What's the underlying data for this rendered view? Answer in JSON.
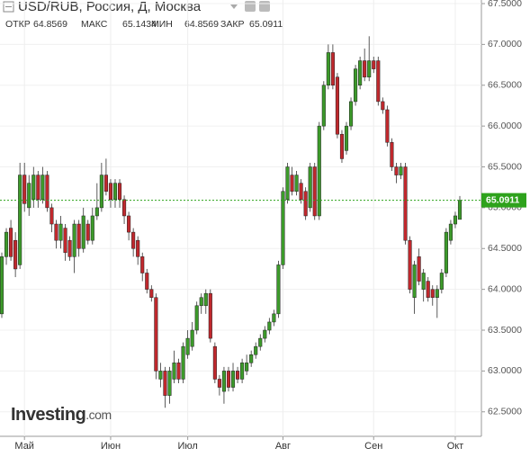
{
  "chart_data": {
    "type": "candlestick",
    "title": "USD/RUB, Россия, Д, Москва",
    "stat_labels": [
      "ОТКР",
      "МАКС",
      "МИН",
      "ЗАКР"
    ],
    "watermark": "Investing",
    "watermark_suffix": ".com",
    "up_color": "#3c9a2a",
    "down_color": "#c0282d",
    "last_color": "#2ea21c",
    "ylim": [
      62.2,
      67.5
    ],
    "yticks": [
      {
        "value": 62.5,
        "label": "62.5000"
      },
      {
        "value": 63,
        "label": "63.0000"
      },
      {
        "value": 63.5,
        "label": "63.5000"
      },
      {
        "value": 64,
        "label": "64.0000"
      },
      {
        "value": 64.5,
        "label": "64.5000"
      },
      {
        "value": 65,
        "label": "65.0000"
      },
      {
        "value": 65.5,
        "label": "65.5000"
      },
      {
        "value": 66,
        "label": "66.0000"
      },
      {
        "value": 66.5,
        "label": "66.5000"
      },
      {
        "value": 67,
        "label": "67.0000"
      },
      {
        "value": 67.5,
        "label": "67.5000"
      }
    ],
    "xticks": [
      {
        "value": 5,
        "label": "Май"
      },
      {
        "value": 24,
        "label": "Июн"
      },
      {
        "value": 41,
        "label": "Июл"
      },
      {
        "value": 62,
        "label": "Авг"
      },
      {
        "value": 82,
        "label": "Сен"
      },
      {
        "value": 100,
        "label": "Окт"
      }
    ],
    "ohlc": [
      [
        63.7,
        64.45,
        63.65,
        64.4
      ],
      [
        64.4,
        64.75,
        64.3,
        64.7
      ],
      [
        64.75,
        64.85,
        64.35,
        64.4
      ],
      [
        64.6,
        64.7,
        64.15,
        64.25
      ],
      [
        64.3,
        65.55,
        64.25,
        65.4
      ],
      [
        65.4,
        65.55,
        64.95,
        65.05
      ],
      [
        65.0,
        65.4,
        64.9,
        65.3
      ],
      [
        65.1,
        65.5,
        65.0,
        65.4
      ],
      [
        65.4,
        65.45,
        65.0,
        65.1
      ],
      [
        65.1,
        65.5,
        65.05,
        65.4
      ],
      [
        65.4,
        65.45,
        64.95,
        65.0
      ],
      [
        65.0,
        65.05,
        64.7,
        64.8
      ],
      [
        64.8,
        64.85,
        64.5,
        64.6
      ],
      [
        64.6,
        64.9,
        64.5,
        64.8
      ],
      [
        64.75,
        64.8,
        64.35,
        64.45
      ],
      [
        64.6,
        64.65,
        64.35,
        64.4
      ],
      [
        64.4,
        64.85,
        64.2,
        64.8
      ],
      [
        64.8,
        64.85,
        64.4,
        64.5
      ],
      [
        64.5,
        65.0,
        64.45,
        64.9
      ],
      [
        64.8,
        64.85,
        64.55,
        64.6
      ],
      [
        64.6,
        65.0,
        64.55,
        64.9
      ],
      [
        64.9,
        65.3,
        64.85,
        65.0
      ],
      [
        65.0,
        65.55,
        64.95,
        65.4
      ],
      [
        65.4,
        65.6,
        65.15,
        65.2
      ],
      [
        65.3,
        65.35,
        65.0,
        65.1
      ],
      [
        65.1,
        65.35,
        65.0,
        65.3
      ],
      [
        65.3,
        65.35,
        65.0,
        65.1
      ],
      [
        65.1,
        65.15,
        64.8,
        64.9
      ],
      [
        64.9,
        64.95,
        64.6,
        64.7
      ],
      [
        64.7,
        64.75,
        64.4,
        64.5
      ],
      [
        64.6,
        64.65,
        64.3,
        64.4
      ],
      [
        64.4,
        64.45,
        64.1,
        64.2
      ],
      [
        64.2,
        64.25,
        63.95,
        64.0
      ],
      [
        64.0,
        64.05,
        63.85,
        63.9
      ],
      [
        63.9,
        63.95,
        62.9,
        63.0
      ],
      [
        62.9,
        63.1,
        62.8,
        63.0
      ],
      [
        63.0,
        63.05,
        62.55,
        62.7
      ],
      [
        62.7,
        63.05,
        62.6,
        63.0
      ],
      [
        62.9,
        63.25,
        62.85,
        63.1
      ],
      [
        63.1,
        63.15,
        62.85,
        62.9
      ],
      [
        62.9,
        63.35,
        62.85,
        63.3
      ],
      [
        63.2,
        63.5,
        63.15,
        63.4
      ],
      [
        63.3,
        63.6,
        63.25,
        63.5
      ],
      [
        63.5,
        63.85,
        63.45,
        63.8
      ],
      [
        63.8,
        63.95,
        63.7,
        63.9
      ],
      [
        63.8,
        64.0,
        63.7,
        63.95
      ],
      [
        63.95,
        64.0,
        63.35,
        63.4
      ],
      [
        63.3,
        63.35,
        62.85,
        62.9
      ],
      [
        62.9,
        62.95,
        62.7,
        62.8
      ],
      [
        62.75,
        63.05,
        62.6,
        63.0
      ],
      [
        63.0,
        63.05,
        62.75,
        62.8
      ],
      [
        62.8,
        63.1,
        62.75,
        63.0
      ],
      [
        63.0,
        63.05,
        62.85,
        62.9
      ],
      [
        62.9,
        63.15,
        62.85,
        63.1
      ],
      [
        63.0,
        63.2,
        62.95,
        63.1
      ],
      [
        63.1,
        63.25,
        63.05,
        63.2
      ],
      [
        63.2,
        63.35,
        63.15,
        63.3
      ],
      [
        63.3,
        63.45,
        63.25,
        63.4
      ],
      [
        63.4,
        63.55,
        63.35,
        63.5
      ],
      [
        63.5,
        63.65,
        63.45,
        63.6
      ],
      [
        63.6,
        63.75,
        63.55,
        63.7
      ],
      [
        63.7,
        64.35,
        63.65,
        64.3
      ],
      [
        64.3,
        65.25,
        64.25,
        65.2
      ],
      [
        65.1,
        65.55,
        65.05,
        65.5
      ],
      [
        65.4,
        65.5,
        65.15,
        65.2
      ],
      [
        65.2,
        65.45,
        65.15,
        65.4
      ],
      [
        65.3,
        65.35,
        65.05,
        65.1
      ],
      [
        65.2,
        65.25,
        64.85,
        64.9
      ],
      [
        65.0,
        65.55,
        64.95,
        65.5
      ],
      [
        65.5,
        65.55,
        64.85,
        64.9
      ],
      [
        64.9,
        66.05,
        64.85,
        66.0
      ],
      [
        66.0,
        66.55,
        65.95,
        66.5
      ],
      [
        66.5,
        67.0,
        66.45,
        66.9
      ],
      [
        66.9,
        67.0,
        66.45,
        66.5
      ],
      [
        66.6,
        66.65,
        65.85,
        65.9
      ],
      [
        65.9,
        65.95,
        65.55,
        65.6
      ],
      [
        65.7,
        66.05,
        65.65,
        66.0
      ],
      [
        66.0,
        66.35,
        65.95,
        66.3
      ],
      [
        66.3,
        66.75,
        66.25,
        66.7
      ],
      [
        66.5,
        66.85,
        66.45,
        66.8
      ],
      [
        66.8,
        66.95,
        66.55,
        66.6
      ],
      [
        66.6,
        67.1,
        66.55,
        66.8
      ],
      [
        66.8,
        66.85,
        66.65,
        66.7
      ],
      [
        66.8,
        66.85,
        66.25,
        66.3
      ],
      [
        66.3,
        66.35,
        66.15,
        66.2
      ],
      [
        66.2,
        66.25,
        65.75,
        65.8
      ],
      [
        65.8,
        65.85,
        65.45,
        65.5
      ],
      [
        65.5,
        65.55,
        65.3,
        65.4
      ],
      [
        65.4,
        65.55,
        65.35,
        65.5
      ],
      [
        65.5,
        65.55,
        64.55,
        64.6
      ],
      [
        64.6,
        64.65,
        63.95,
        64.0
      ],
      [
        63.9,
        64.35,
        63.7,
        64.3
      ],
      [
        64.4,
        64.5,
        64.05,
        64.1
      ],
      [
        64.0,
        64.25,
        63.85,
        64.2
      ],
      [
        64.1,
        64.15,
        63.85,
        63.9
      ],
      [
        64.0,
        64.05,
        63.8,
        63.9
      ],
      [
        63.9,
        64.05,
        63.65,
        64.0
      ],
      [
        64.0,
        64.25,
        63.95,
        64.2
      ],
      [
        64.2,
        64.75,
        64.15,
        64.7
      ],
      [
        64.6,
        64.85,
        64.55,
        64.8
      ],
      [
        64.8,
        64.95,
        64.75,
        64.9
      ],
      [
        64.8569,
        65.1434,
        64.8569,
        65.0911
      ]
    ]
  }
}
